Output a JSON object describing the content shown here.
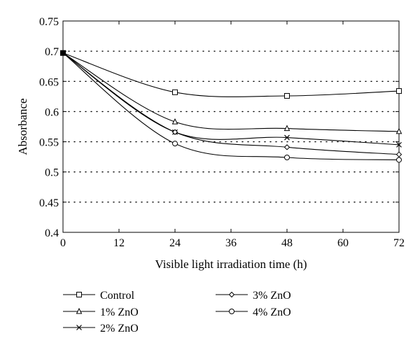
{
  "chart_data": {
    "type": "line",
    "title": "",
    "xlabel": "Visible light irradiation time (h)",
    "ylabel": "Absorbance",
    "xlim": [
      0,
      72
    ],
    "ylim": [
      0.4,
      0.75
    ],
    "x_ticks": [
      0,
      12,
      24,
      36,
      48,
      60,
      72
    ],
    "y_ticks": [
      0.4,
      0.45,
      0.5,
      0.55,
      0.6,
      0.65,
      0.7,
      0.75
    ],
    "y_tick_labels": [
      "0.4",
      "0.45",
      "0.5",
      "0.55",
      "0.6",
      "0.65",
      "0.7",
      "0.75"
    ],
    "grid": "horizontal dotted",
    "legend_position": "below plot, two columns",
    "x": [
      0,
      24,
      48,
      72
    ],
    "series": [
      {
        "name": "Control",
        "marker": "square",
        "values": [
          0.697,
          0.632,
          0.626,
          0.634
        ]
      },
      {
        "name": "1% ZnO",
        "marker": "triangle",
        "values": [
          0.697,
          0.583,
          0.572,
          0.567
        ]
      },
      {
        "name": "2% ZnO",
        "marker": "x",
        "values": [
          0.697,
          0.566,
          0.557,
          0.545
        ]
      },
      {
        "name": "3% ZnO",
        "marker": "diamond",
        "values": [
          0.697,
          0.566,
          0.541,
          0.529
        ]
      },
      {
        "name": "4% ZnO",
        "marker": "circle",
        "values": [
          0.697,
          0.547,
          0.524,
          0.52
        ]
      }
    ]
  }
}
